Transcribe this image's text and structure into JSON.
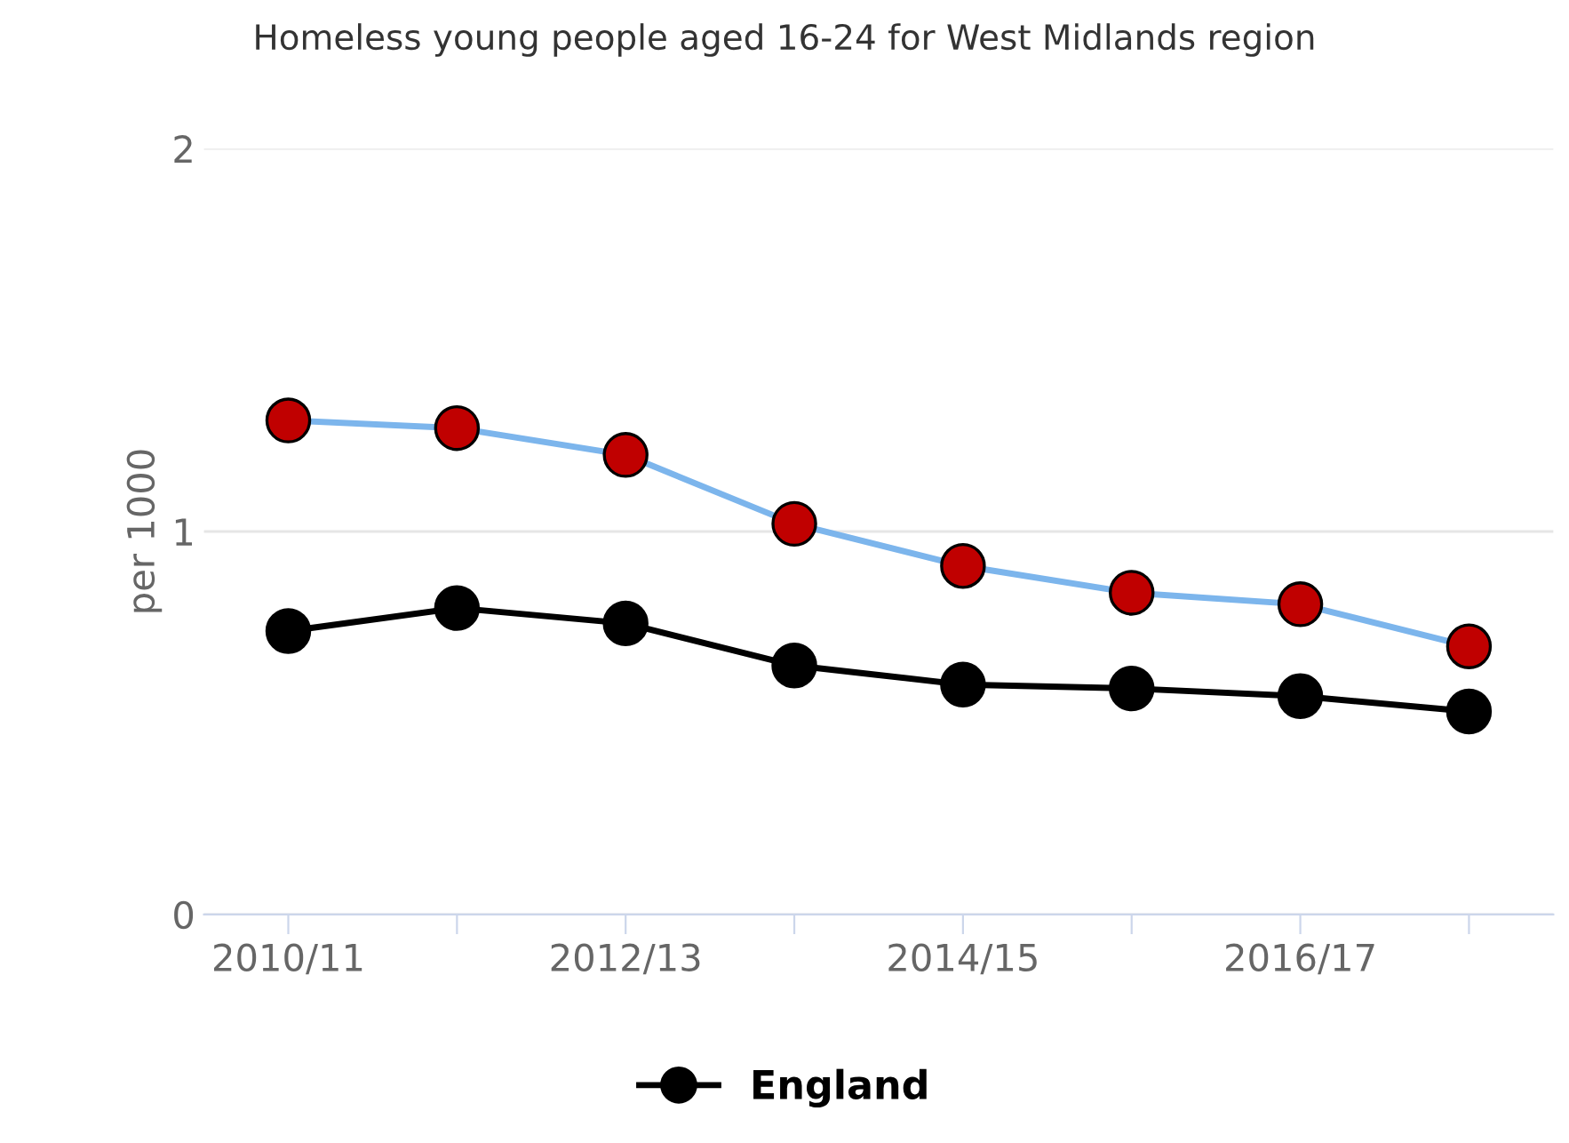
{
  "chart_data": {
    "type": "line",
    "title": "Homeless young people aged 16-24 for West Midlands region",
    "ylabel": "per 1000",
    "categories": [
      "2010/11",
      null,
      "2012/13",
      null,
      "2014/15",
      null,
      "2016/17",
      null
    ],
    "series": [
      {
        "color": "#7cb5ec",
        "colors": [
          "#c00000",
          "#c00000",
          "#c00000",
          "#c00000",
          "#c00000",
          "#c00000",
          "#c00000",
          "#c00000"
        ],
        "values": [
          1.29,
          1.27,
          1.2,
          1.02,
          0.91,
          0.84,
          0.81,
          0.7
        ]
      },
      {
        "name": "England",
        "color": "#000000",
        "values": [
          0.74,
          0.8,
          0.76,
          0.65,
          0.6,
          0.59,
          0.57,
          0.53
        ]
      }
    ],
    "ylim": [
      0,
      2
    ],
    "yticks": [
      0,
      1,
      2
    ],
    "grid": "y",
    "legend": "bottom",
    "marker": "circle",
    "line_style": "solid"
  }
}
